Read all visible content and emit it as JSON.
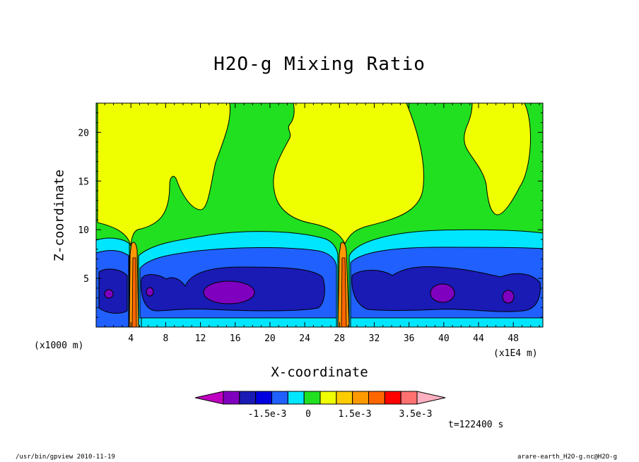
{
  "chart_data": {
    "type": "contour",
    "title": "H2O-g Mixing Ratio",
    "xlabel": "X-coordinate",
    "ylabel": "Z-coordinate",
    "x_unit_left": "(x1000 m)",
    "x_unit_right": "(x1E4 m)",
    "x_ticks": [
      "4",
      "8",
      "12",
      "16",
      "20",
      "24",
      "28",
      "32",
      "36",
      "40",
      "44",
      "48"
    ],
    "x_tick_values": [
      4,
      8,
      12,
      16,
      20,
      24,
      28,
      32,
      36,
      40,
      44,
      48
    ],
    "xlim": [
      0,
      51.4
    ],
    "y_ticks": [
      "5",
      "10",
      "15",
      "20"
    ],
    "y_tick_values": [
      5,
      10,
      15,
      20
    ],
    "ylim": [
      0,
      23
    ],
    "colorbar": {
      "colors": [
        "#c000c0",
        "#8000c0",
        "#1a1ab4",
        "#0000e0",
        "#2060ff",
        "#00e6ff",
        "#20e020",
        "#f0ff00",
        "#ffcc00",
        "#ff9900",
        "#ff6600",
        "#ff0000",
        "#ff7070",
        "#ffb0c0"
      ],
      "labels": [
        "-1.5e-3",
        "0",
        "1.5e-3",
        "3.5e-3"
      ]
    },
    "time_label": "t=122400 s"
  },
  "footer": {
    "left": "/usr/bin/gpview  2010-11-19",
    "right": "arare-earth_H2O-g.nc@H2O-g"
  }
}
